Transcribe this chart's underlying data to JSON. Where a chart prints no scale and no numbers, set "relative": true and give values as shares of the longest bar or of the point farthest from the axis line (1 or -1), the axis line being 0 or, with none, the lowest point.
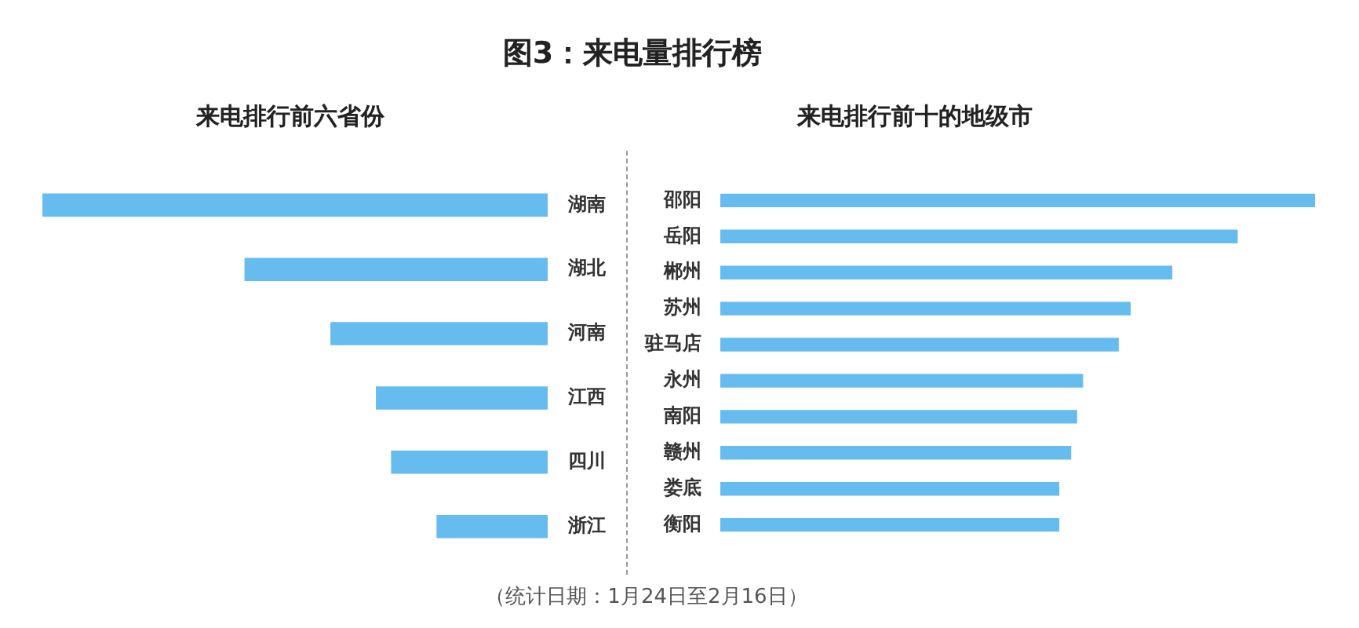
{
  "chart_data": [
    {
      "type": "bar",
      "orientation": "horizontal",
      "relative": true,
      "title": "图3：来电量排行榜",
      "subtitle": "来电排行前六省份",
      "categories": [
        "湖南",
        "湖北",
        "河南",
        "江西",
        "四川",
        "浙江"
      ],
      "values": [
        1,
        0.6,
        0.43,
        0.34,
        0.31,
        0.22
      ],
      "color": "#66bcef",
      "annotations": [
        "（统计日期：1月24日至2月16日）"
      ]
    },
    {
      "type": "bar",
      "orientation": "horizontal",
      "relative": true,
      "title": "来电排行前十的地级市",
      "categories": [
        "邵阳",
        "岳阳",
        "郴州",
        "苏州",
        "驻马店",
        "永州",
        "南阳",
        "赣州",
        "娄底",
        "衡阳"
      ],
      "values": [
        1,
        0.87,
        0.76,
        0.69,
        0.67,
        0.61,
        0.6,
        0.59,
        0.57,
        0.57
      ],
      "color": "#66bcef"
    }
  ]
}
